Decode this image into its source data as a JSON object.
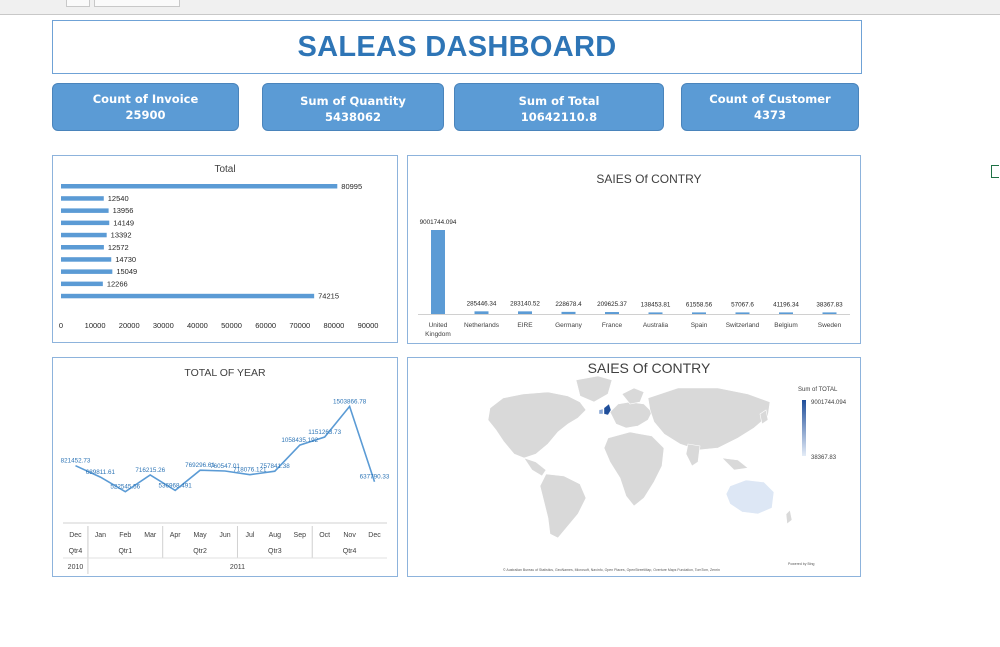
{
  "dashboard": {
    "title": "SALEAS DASHBOARD"
  },
  "kpis": [
    {
      "label": "Count of Invoice",
      "value": "25900"
    },
    {
      "label": "Sum of Quantity",
      "value": "5438062"
    },
    {
      "label": "Sum of Total",
      "value": "10642110.8"
    },
    {
      "label": "Count of Customer",
      "value": "4373"
    }
  ],
  "colors": {
    "accent": "#5b9bd5",
    "title": "#2e75b6",
    "map_high": "#1f4e9a",
    "map_low": "#e4ecf7",
    "land": "#d9d9d9"
  },
  "chart_data": [
    {
      "type": "bar",
      "orientation": "horizontal",
      "title": "Total",
      "values": [
        80995,
        12540,
        13956,
        14149,
        13392,
        12572,
        14730,
        15049,
        12266,
        74215
      ],
      "xlim": [
        0,
        90000
      ],
      "xticks": [
        "0",
        "10000",
        "20000",
        "30000",
        "40000",
        "50000",
        "60000",
        "70000",
        "80000",
        "90000"
      ]
    },
    {
      "type": "bar",
      "title": "SAIES Of CONTRY",
      "categories": [
        "United Kingdom",
        "Netherlands",
        "EIRE",
        "Germany",
        "France",
        "Australia",
        "Spain",
        "Switzerland",
        "Belgium",
        "Sweden"
      ],
      "values": [
        9001744.094,
        285446.34,
        283140.52,
        228678.4,
        209625.37,
        138453.81,
        61558.56,
        57067.6,
        41196.34,
        38367.83
      ],
      "value_labels": [
        "9001744.094",
        "285446.34",
        "283140.52",
        "228678.4",
        "209625.37",
        "138453.81",
        "61558.56",
        "57067.6",
        "41196.34",
        "38367.83"
      ]
    },
    {
      "type": "line",
      "title": "TOTAL OF YEAR",
      "months": [
        "Dec",
        "Jan",
        "Feb",
        "Mar",
        "Apr",
        "May",
        "Jun",
        "Jul",
        "Aug",
        "Sep",
        "Oct",
        "Nov",
        "Dec"
      ],
      "quarters": [
        "Qtr4",
        "Qtr1",
        "Qtr2",
        "Qtr3",
        "Qtr4"
      ],
      "years": [
        "2010",
        "2011"
      ],
      "values": [
        821452.73,
        689811.61,
        522545.56,
        716215.26,
        536968.491,
        769296.61,
        760547.01,
        718076.121,
        757841.38,
        1058435.192,
        1151263.73,
        1503866.78,
        637790.33
      ],
      "value_labels": [
        "821452.73",
        "689811.61",
        "522545.56",
        "716215.26",
        "536968.491",
        "769296.61",
        "760547.01",
        "718076.121",
        "757841.38",
        "1058435.192",
        "1151263.73",
        "1503866.78",
        "637790.33"
      ]
    },
    {
      "type": "map",
      "title": "SAIES Of CONTRY",
      "legend_title": "Sum of TOTAL",
      "legend_max": "9001744.094",
      "legend_min": "38367.83",
      "attribution": "© Australian Bureau of Statistics, GeoNames, Microsoft, Navinfo, Open Places, OpenStreetMap, Overture Maps Fundation, TomTom, Zenrin",
      "powered": "Powered by Bing"
    }
  ]
}
